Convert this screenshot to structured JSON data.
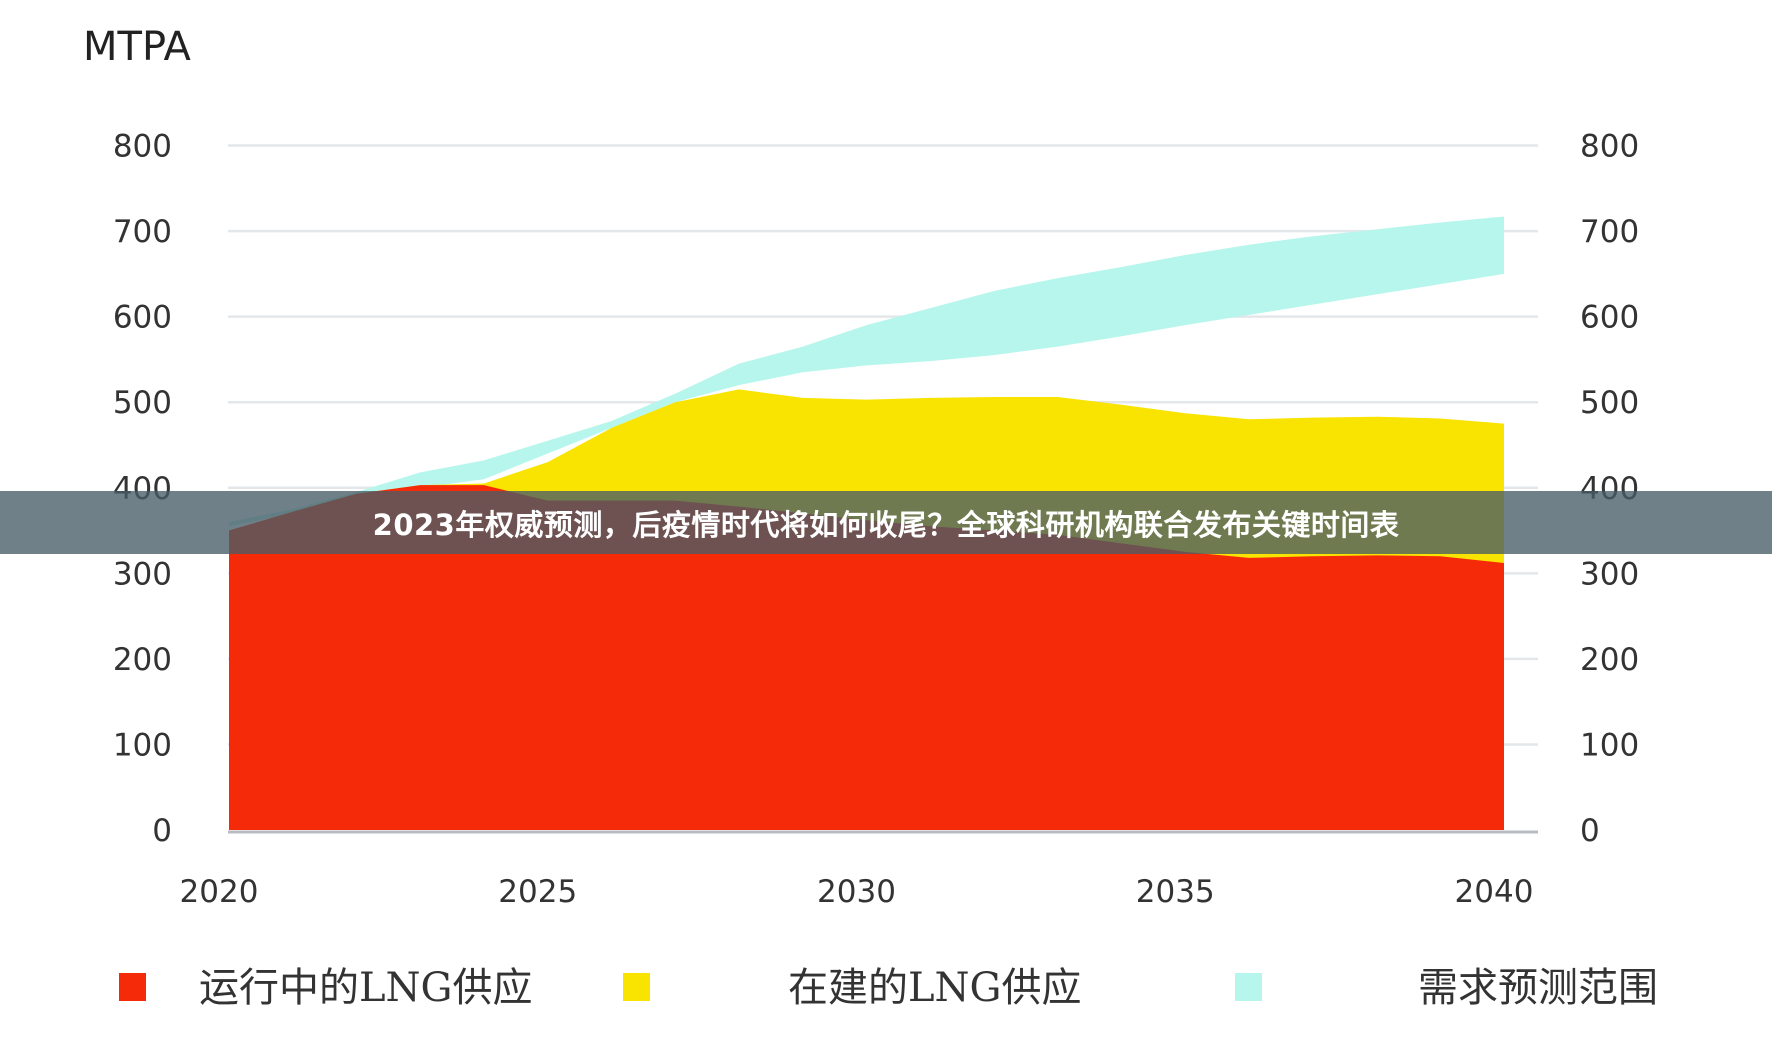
{
  "banner": {
    "text": "2023年权威预测，后疫情时代将如何收尾？全球科研机构联合发布关键时间表"
  },
  "chart_data": {
    "type": "area",
    "ylabel": "MTPA",
    "x": [
      2020,
      2021,
      2022,
      2023,
      2024,
      2025,
      2026,
      2027,
      2028,
      2029,
      2030,
      2031,
      2032,
      2033,
      2034,
      2035,
      2036,
      2037,
      2038,
      2039,
      2040
    ],
    "xticks": [
      2020,
      2025,
      2030,
      2035,
      2040
    ],
    "yticks": [
      0,
      100,
      200,
      300,
      400,
      500,
      600,
      700,
      800
    ],
    "xlim": [
      2020,
      2040
    ],
    "ylim": [
      0,
      800
    ],
    "grid": true,
    "legend_position": "bottom",
    "colors": {
      "operating": "#f52a08",
      "construction": "#f9e300",
      "demand": "#b6f6ec"
    },
    "series": [
      {
        "name": "运行中的LNG供应",
        "values": [
          350,
          372,
          393,
          403,
          403,
          385,
          385,
          385,
          378,
          370,
          362,
          355,
          350,
          345,
          335,
          325,
          318,
          320,
          321,
          320,
          312
        ]
      },
      {
        "name": "在建的LNG供应",
        "stacked_total": [
          350,
          372,
          393,
          403,
          405,
          430,
          470,
          500,
          515,
          505,
          503,
          505,
          506,
          506,
          497,
          487,
          480,
          482,
          483,
          481,
          475
        ]
      },
      {
        "name": "需求预测范围",
        "low": [
          355,
          370,
          385,
          400,
          410,
          440,
          470,
          500,
          520,
          535,
          543,
          548,
          555,
          565,
          577,
          590,
          602,
          614,
          626,
          638,
          650
        ],
        "high": [
          360,
          375,
          395,
          418,
          432,
          455,
          478,
          510,
          545,
          565,
          590,
          610,
          630,
          645,
          658,
          672,
          684,
          694,
          702,
          710,
          717
        ]
      }
    ]
  }
}
